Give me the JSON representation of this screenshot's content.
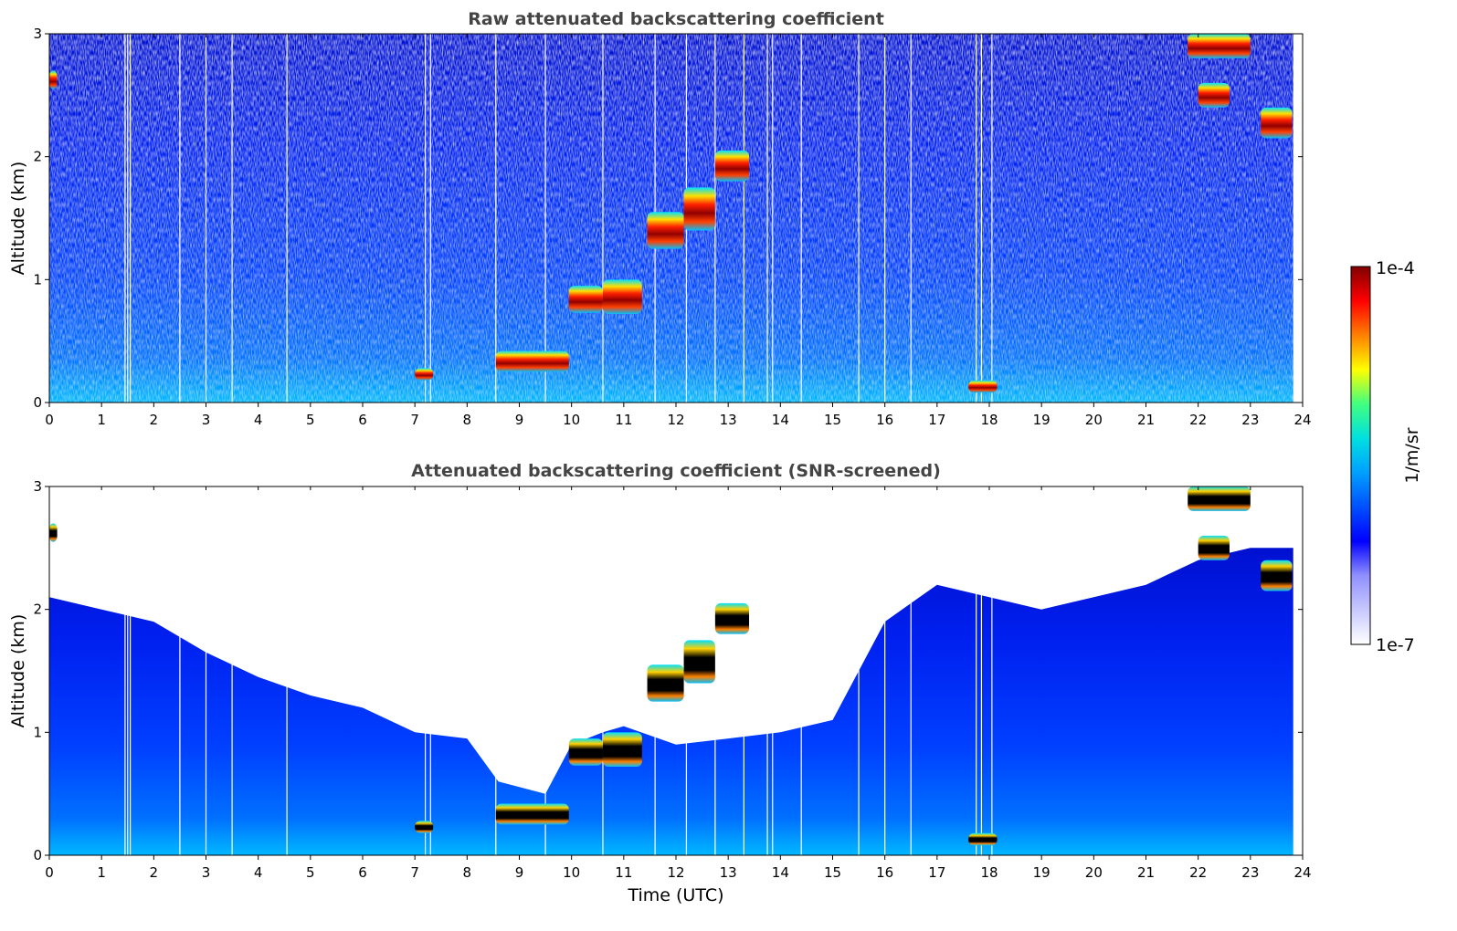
{
  "chart_data": [
    {
      "type": "heatmap",
      "title": "Raw attenuated backscattering coefficient",
      "xlabel": "",
      "ylabel": "Altitude (km)",
      "xlim": [
        0,
        24
      ],
      "ylim": [
        0,
        3
      ],
      "xticks": [
        "0",
        "1",
        "2",
        "3",
        "4",
        "5",
        "6",
        "7",
        "8",
        "9",
        "10",
        "11",
        "12",
        "13",
        "14",
        "15",
        "16",
        "17",
        "18",
        "19",
        "20",
        "21",
        "22",
        "23",
        "24"
      ],
      "yticks": [
        "0",
        "1",
        "2",
        "3"
      ],
      "gaps_hours": [
        1.45,
        1.5,
        1.55,
        2.5,
        3.0,
        3.5,
        4.55,
        7.2,
        7.3,
        8.55,
        9.5,
        10.6,
        11.6,
        12.2,
        12.75,
        13.3,
        13.75,
        13.85,
        14.4,
        15.5,
        16.0,
        16.5,
        17.75,
        17.85,
        18.05
      ],
      "cloud_layers": [
        {
          "x": [
            0.0,
            0.15
          ],
          "base_km": 2.55,
          "top_km": 2.7
        },
        {
          "x": [
            7.0,
            7.35
          ],
          "base_km": 0.18,
          "top_km": 0.28
        },
        {
          "x": [
            8.55,
            9.95
          ],
          "base_km": 0.25,
          "top_km": 0.42
        },
        {
          "x": [
            9.95,
            10.6
          ],
          "base_km": 0.73,
          "top_km": 0.95
        },
        {
          "x": [
            10.6,
            11.35
          ],
          "base_km": 0.72,
          "top_km": 1.0
        },
        {
          "x": [
            11.45,
            12.15
          ],
          "base_km": 1.25,
          "top_km": 1.55
        },
        {
          "x": [
            12.15,
            12.75
          ],
          "base_km": 1.4,
          "top_km": 1.75
        },
        {
          "x": [
            12.75,
            13.4
          ],
          "base_km": 1.8,
          "top_km": 2.05
        },
        {
          "x": [
            17.6,
            18.15
          ],
          "base_km": 0.08,
          "top_km": 0.18
        },
        {
          "x": [
            21.8,
            23.0
          ],
          "base_km": 2.8,
          "top_km": 3.0
        },
        {
          "x": [
            22.0,
            22.6
          ],
          "base_km": 2.4,
          "top_km": 2.6
        },
        {
          "x": [
            23.2,
            23.8
          ],
          "base_km": 2.15,
          "top_km": 2.4
        }
      ]
    },
    {
      "type": "heatmap",
      "title": "Attenuated backscattering coefficient (SNR-screened)",
      "xlabel": "Time (UTC)",
      "ylabel": "Altitude (km)",
      "xlim": [
        0,
        24
      ],
      "ylim": [
        0,
        3
      ],
      "xticks": [
        "0",
        "1",
        "2",
        "3",
        "4",
        "5",
        "6",
        "7",
        "8",
        "9",
        "10",
        "11",
        "12",
        "13",
        "14",
        "15",
        "16",
        "17",
        "18",
        "19",
        "20",
        "21",
        "22",
        "23",
        "24"
      ],
      "yticks": [
        "0",
        "1",
        "2",
        "3"
      ],
      "signal_top_km": [
        [
          0,
          2.1
        ],
        [
          1,
          2.0
        ],
        [
          2,
          1.9
        ],
        [
          3,
          1.65
        ],
        [
          4,
          1.45
        ],
        [
          5,
          1.3
        ],
        [
          6,
          1.2
        ],
        [
          7,
          1.0
        ],
        [
          8,
          0.95
        ],
        [
          8.6,
          0.6
        ],
        [
          9.5,
          0.5
        ],
        [
          10,
          0.9
        ],
        [
          10.6,
          1.0
        ],
        [
          11,
          1.05
        ],
        [
          12,
          0.9
        ],
        [
          13,
          0.95
        ],
        [
          14,
          1.0
        ],
        [
          15,
          1.1
        ],
        [
          16,
          1.9
        ],
        [
          17,
          2.2
        ],
        [
          18,
          2.1
        ],
        [
          19,
          2.0
        ],
        [
          20,
          2.1
        ],
        [
          21,
          2.2
        ],
        [
          22,
          2.4
        ],
        [
          23,
          2.5
        ],
        [
          23.85,
          2.5
        ]
      ],
      "cloud_layers": [
        {
          "x": [
            0.0,
            0.15
          ],
          "base_km": 2.55,
          "top_km": 2.7
        },
        {
          "x": [
            7.0,
            7.35
          ],
          "base_km": 0.18,
          "top_km": 0.28
        },
        {
          "x": [
            8.55,
            9.95
          ],
          "base_km": 0.25,
          "top_km": 0.42
        },
        {
          "x": [
            9.95,
            10.6
          ],
          "base_km": 0.73,
          "top_km": 0.95
        },
        {
          "x": [
            10.6,
            11.35
          ],
          "base_km": 0.72,
          "top_km": 1.0
        },
        {
          "x": [
            11.45,
            12.15
          ],
          "base_km": 1.25,
          "top_km": 1.55
        },
        {
          "x": [
            12.15,
            12.75
          ],
          "base_km": 1.4,
          "top_km": 1.75
        },
        {
          "x": [
            12.75,
            13.4
          ],
          "base_km": 1.8,
          "top_km": 2.05
        },
        {
          "x": [
            17.6,
            18.15
          ],
          "base_km": 0.08,
          "top_km": 0.18
        },
        {
          "x": [
            21.8,
            23.0
          ],
          "base_km": 2.8,
          "top_km": 3.0
        },
        {
          "x": [
            22.0,
            22.6
          ],
          "base_km": 2.4,
          "top_km": 2.6
        },
        {
          "x": [
            23.2,
            23.8
          ],
          "base_km": 2.15,
          "top_km": 2.4
        }
      ]
    }
  ],
  "colorbar": {
    "min_label": "1e-7",
    "max_label": "1e-4",
    "label": "1/m/sr",
    "scale": "log",
    "colormap": [
      "#ffffff",
      "#c8c8ff",
      "#9090ff",
      "#0000ff",
      "#0050ff",
      "#00a0ff",
      "#00e0e0",
      "#40ff80",
      "#ffff00",
      "#ff8000",
      "#ff0000",
      "#800000"
    ]
  }
}
